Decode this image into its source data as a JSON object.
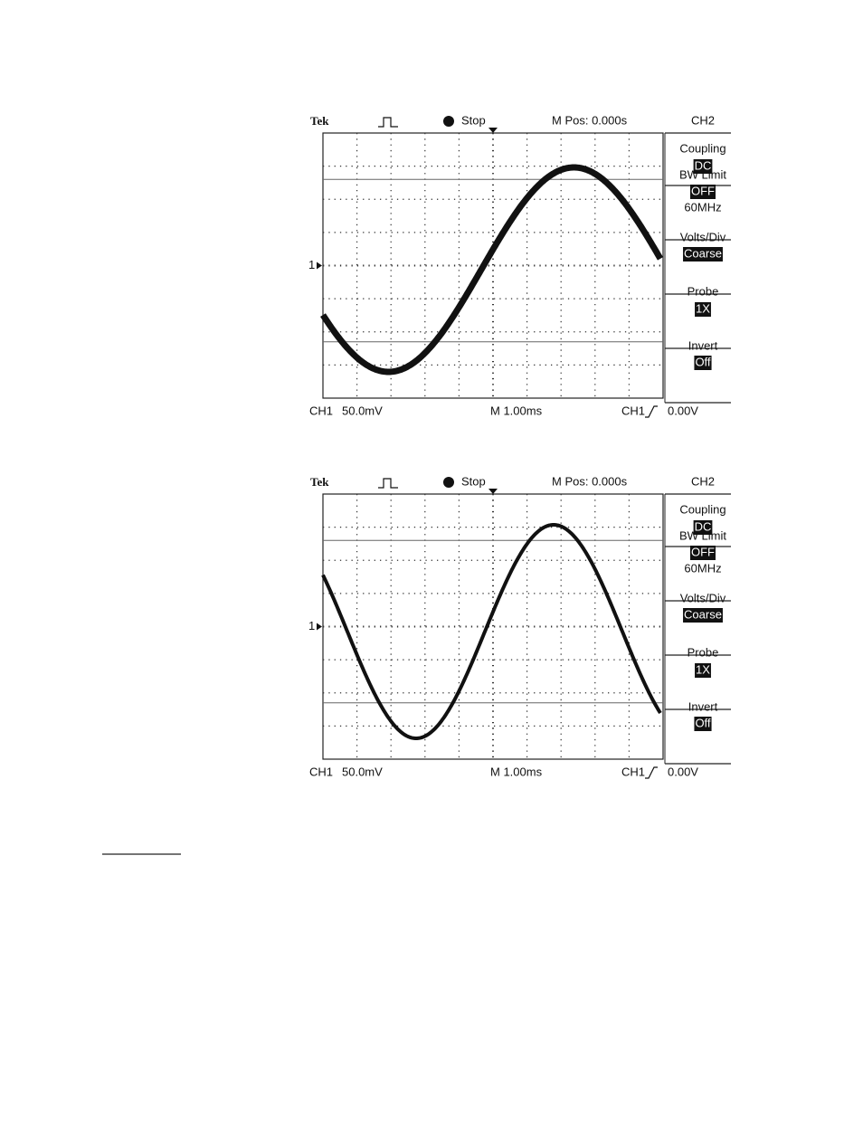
{
  "scopes": [
    {
      "brand": "Tek",
      "status": "Stop",
      "position": "M Pos: 0.000s",
      "channel": "CH2",
      "ch_marker": "1",
      "menu": [
        {
          "label": "Coupling",
          "value": "DC"
        },
        {
          "label": "BW Limit",
          "value": "OFF",
          "note": "60MHz"
        },
        {
          "label": "Volts/Div",
          "value": "Coarse"
        },
        {
          "label": "Probe",
          "value": "1X"
        },
        {
          "label": "Invert",
          "value": "Off"
        }
      ],
      "footer": {
        "ch_label": "CH1",
        "volts": "50.0mV",
        "timebase": "M 1.00ms",
        "trigger_source": "CH1",
        "trigger_level": "0.00V"
      }
    },
    {
      "brand": "Tek",
      "status": "Stop",
      "position": "M Pos: 0.000s",
      "channel": "CH2",
      "ch_marker": "1",
      "menu": [
        {
          "label": "Coupling",
          "value": "DC"
        },
        {
          "label": "BW Limit",
          "value": "OFF",
          "note": "60MHz"
        },
        {
          "label": "Volts/Div",
          "value": "Coarse"
        },
        {
          "label": "Probe",
          "value": "1X"
        },
        {
          "label": "Invert",
          "value": "Off"
        }
      ],
      "footer": {
        "ch_label": "CH1",
        "volts": "50.0mV",
        "timebase": "M 1.00ms",
        "trigger_source": "CH1",
        "trigger_level": "0.00V"
      }
    }
  ]
}
